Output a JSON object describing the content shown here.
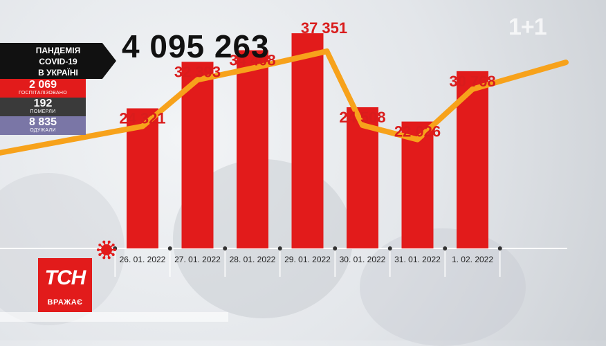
{
  "headline_total": "4 095 263",
  "sidebar": {
    "title_lines": [
      "ПАНДЕМІЯ",
      "COVID-19",
      "В УКРАЇНІ"
    ],
    "stats": [
      {
        "value": "2 069",
        "label": "ГОСПІТАЛІЗОВАНО",
        "color": "#e21b1b"
      },
      {
        "value": "192",
        "label": "ПОМЕРЛИ",
        "color": "#3a3a3a"
      },
      {
        "value": "8 835",
        "label": "ОДУЖАЛИ",
        "color": "#7a76a6"
      }
    ]
  },
  "channel_logo": "1+1",
  "tsn": {
    "logo": "ТСН",
    "caption": "ВРАЖАЄ"
  },
  "colors": {
    "bar": "#e21b1b",
    "line": "#f7a21b",
    "label": "#d91c1c"
  },
  "virus_icon": "coronavirus-icon",
  "chart_data": {
    "type": "bar",
    "title": "",
    "xlabel": "",
    "ylabel": "",
    "ylim": [
      0,
      40000
    ],
    "grid": false,
    "categories": [
      "26. 01. 2022",
      "27. 01. 2022",
      "28. 01. 2022",
      "29. 01. 2022",
      "30. 01. 2022",
      "31. 01. 2022",
      "1. 02. 2022"
    ],
    "values": [
      24321,
      32393,
      34408,
      37351,
      24508,
      22026,
      30768
    ],
    "value_labels": [
      "24 321",
      "32 393",
      "34 408",
      "37 351",
      "24 508",
      "22 026",
      "30 768"
    ],
    "trend_line": true
  }
}
